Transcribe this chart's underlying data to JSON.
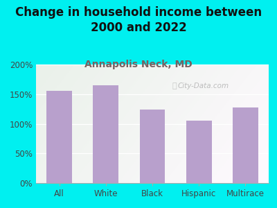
{
  "title": "Change in household income between\n2000 and 2022",
  "subtitle": "Annapolis Neck, MD",
  "categories": [
    "All",
    "White",
    "Black",
    "Hispanic",
    "Multirace"
  ],
  "values": [
    155,
    165,
    124,
    105,
    128
  ],
  "bar_color": "#b8a0cc",
  "title_fontsize": 12,
  "subtitle_fontsize": 10,
  "subtitle_color": "#7a6060",
  "background_color": "#00f0f0",
  "ylim": [
    0,
    200
  ],
  "yticks": [
    0,
    50,
    100,
    150,
    200
  ],
  "ytick_labels": [
    "0%",
    "50%",
    "100%",
    "150%",
    "200%"
  ],
  "watermark": "City-Data.com"
}
